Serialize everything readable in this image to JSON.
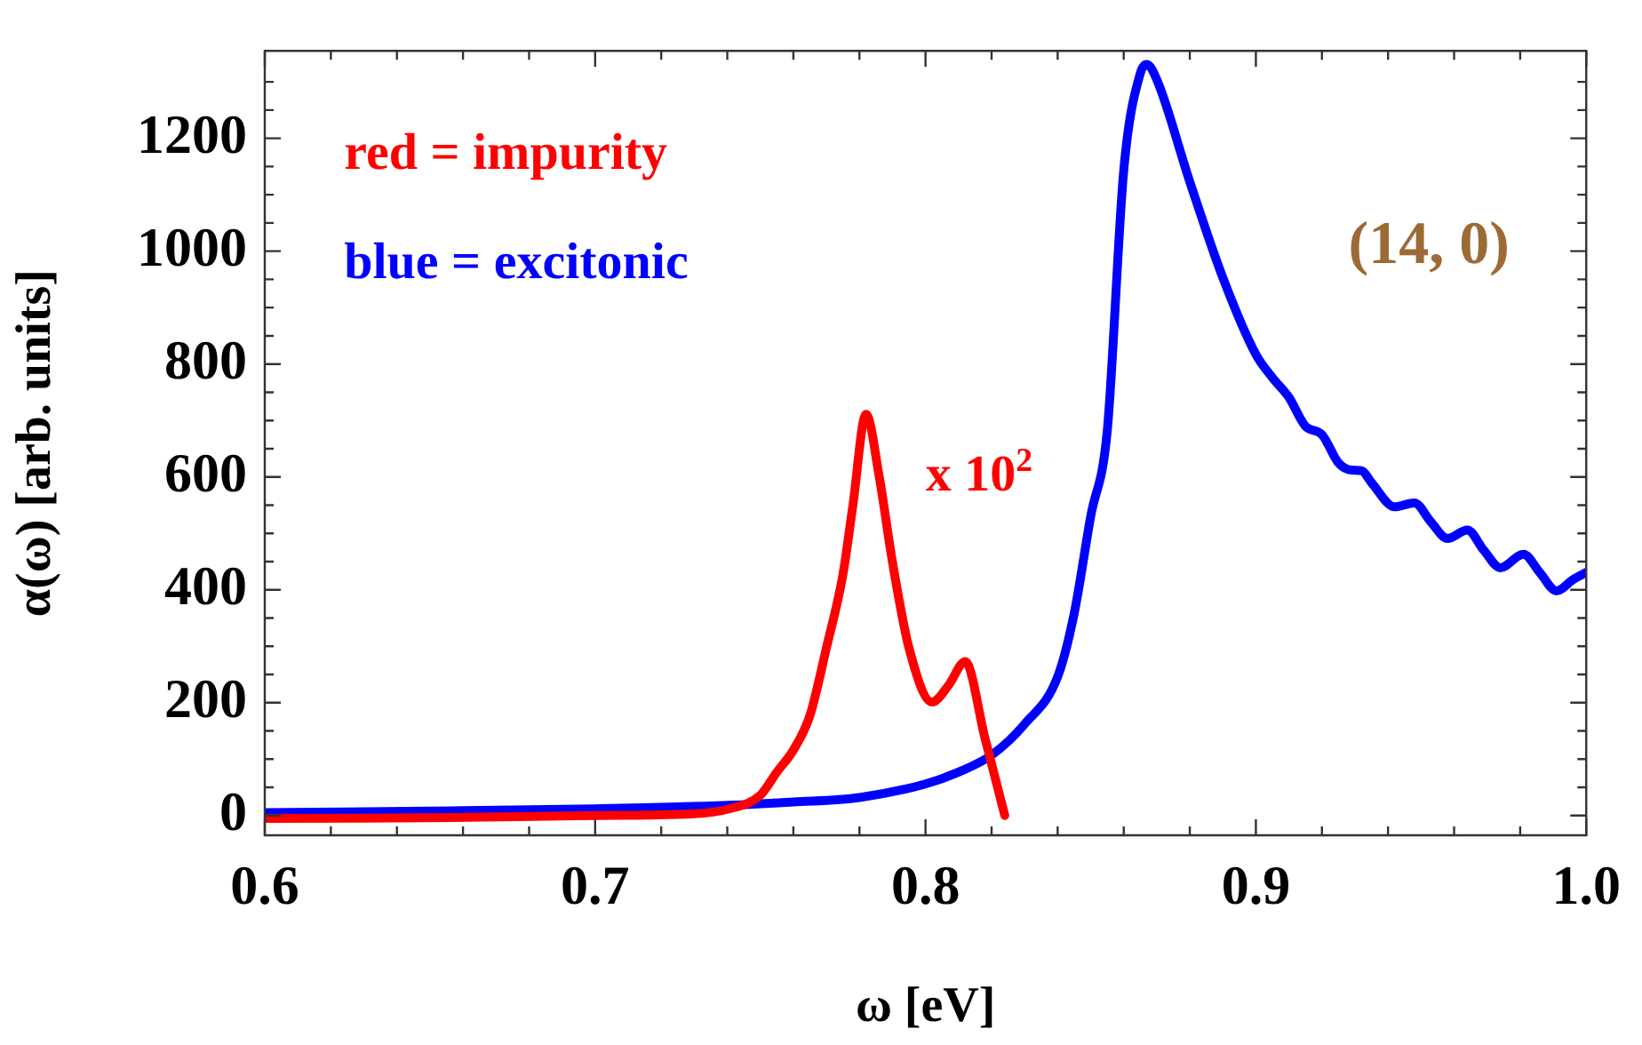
{
  "chart_data": {
    "type": "line",
    "xlabel": "ω [eV]",
    "ylabel": "α(ω) [arb. units]",
    "xlim": [
      0.6,
      1.0
    ],
    "ylim": [
      -35,
      1355
    ],
    "xticks": [
      0.6,
      {
        "value": 0.62,
        "label": null
      },
      {
        "value": 0.64,
        "label": null
      },
      {
        "value": 0.66,
        "label": null
      },
      {
        "value": 0.68,
        "label": null
      },
      0.7,
      {
        "value": 0.72,
        "label": null
      },
      {
        "value": 0.74,
        "label": null
      },
      {
        "value": 0.76,
        "label": null
      },
      {
        "value": 0.78,
        "label": null
      },
      0.8,
      {
        "value": 0.82,
        "label": null
      },
      {
        "value": 0.84,
        "label": null
      },
      {
        "value": 0.86,
        "label": null
      },
      {
        "value": 0.88,
        "label": null
      },
      0.9,
      {
        "value": 0.92,
        "label": null
      },
      {
        "value": 0.94,
        "label": null
      },
      {
        "value": 0.96,
        "label": null
      },
      {
        "value": 0.98,
        "label": null
      },
      {
        "value": 1.0,
        "label": "1.0"
      }
    ],
    "yticks": [
      0,
      {
        "value": 50,
        "label": null
      },
      {
        "value": 100,
        "label": null
      },
      {
        "value": 150,
        "label": null
      },
      200,
      {
        "value": 250,
        "label": null
      },
      {
        "value": 300,
        "label": null
      },
      {
        "value": 350,
        "label": null
      },
      400,
      {
        "value": 450,
        "label": null
      },
      {
        "value": 500,
        "label": null
      },
      {
        "value": 550,
        "label": null
      },
      600,
      {
        "value": 650,
        "label": null
      },
      {
        "value": 700,
        "label": null
      },
      {
        "value": 750,
        "label": null
      },
      800,
      {
        "value": 850,
        "label": null
      },
      {
        "value": 900,
        "label": null
      },
      {
        "value": 950,
        "label": null
      },
      1000,
      {
        "value": 1050,
        "label": null
      },
      {
        "value": 1100,
        "label": null
      },
      {
        "value": 1150,
        "label": null
      },
      1200,
      {
        "value": 1250,
        "label": null
      },
      {
        "value": 1300,
        "label": null
      }
    ],
    "grid": false,
    "legend": false,
    "marker": "none",
    "line_style": "solid",
    "series": [
      {
        "color": "#ff0000",
        "x": [
          0.6,
          0.65,
          0.7,
          0.73,
          0.74,
          0.75,
          0.755,
          0.76,
          0.765,
          0.77,
          0.775,
          0.778,
          0.782,
          0.786,
          0.79,
          0.795,
          0.802,
          0.807,
          0.812,
          0.818,
          0.824
        ],
        "values": [
          -5,
          -4,
          0,
          3,
          11,
          36,
          77,
          116,
          177,
          297,
          427,
          549,
          711,
          600,
          449,
          297,
          201,
          231,
          273,
          137,
          0
        ]
      },
      {
        "color": "#0000ff",
        "x": [
          0.6,
          0.65,
          0.7,
          0.74,
          0.76,
          0.78,
          0.8,
          0.81,
          0.82,
          0.83,
          0.84,
          0.845,
          0.85,
          0.855,
          0.86,
          0.865,
          0.867,
          0.87,
          0.88,
          0.89,
          0.9,
          0.905,
          0.91,
          0.915,
          0.92,
          0.925,
          0.929,
          0.932,
          0.935,
          0.942,
          0.948,
          0.953,
          0.958,
          0.964,
          0.969,
          0.974,
          0.981,
          0.986,
          0.991,
          0.996,
          1.0
        ],
        "values": [
          5,
          8,
          12,
          18,
          24,
          32,
          56,
          77,
          107,
          162,
          246,
          358,
          530,
          681,
          1143,
          1315,
          1331,
          1304,
          1123,
          953,
          817,
          776,
          741,
          690,
          675,
          625,
          612,
          611,
          590,
          547,
          554,
          520,
          491,
          506,
          470,
          439,
          463,
          430,
          398,
          418,
          431
        ]
      }
    ],
    "annotations": [
      "red = impurity",
      "blue = excitonic",
      "x 10$^{2}$",
      "(14, 0)"
    ]
  }
}
